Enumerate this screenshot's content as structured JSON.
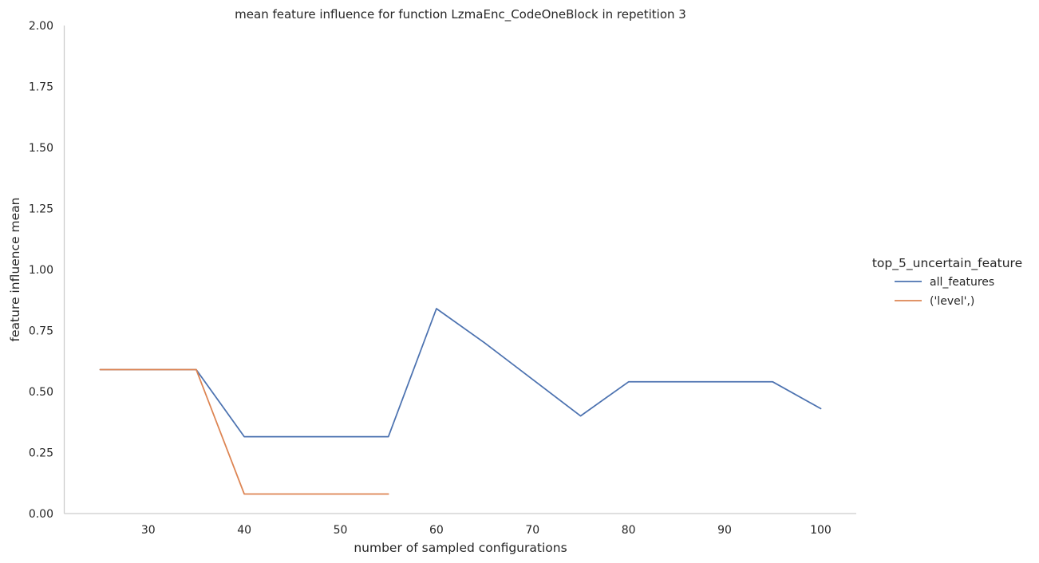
{
  "chart_data": {
    "type": "line",
    "title": "mean feature influence for function LzmaEnc_CodeOneBlock in repetition 3",
    "xlabel": "number of sampled configurations",
    "ylabel": "feature influence mean",
    "xlim": [
      21.3,
      103.7
    ],
    "ylim": [
      0,
      2
    ],
    "xticks": [
      30,
      40,
      50,
      60,
      70,
      80,
      90,
      100
    ],
    "yticks": [
      0,
      0.25,
      0.5,
      0.75,
      1.0,
      1.25,
      1.5,
      1.75,
      2.0
    ],
    "ytick_labels": [
      "0.00",
      "0.25",
      "0.50",
      "0.75",
      "1.00",
      "1.25",
      "1.50",
      "1.75",
      "2.00"
    ],
    "grid": false,
    "legend": {
      "title": "top_5_uncertain_feature",
      "placement": "right"
    },
    "series": [
      {
        "name": "all_features",
        "color": "#4c72b0",
        "x": [
          25,
          30,
          35,
          40,
          45,
          50,
          55,
          60,
          65,
          70,
          75,
          80,
          85,
          90,
          95,
          100
        ],
        "y": [
          0.59,
          0.59,
          0.59,
          0.315,
          0.315,
          0.315,
          0.315,
          0.84,
          0.7,
          0.55,
          0.4,
          0.54,
          0.54,
          0.54,
          0.54,
          0.43
        ]
      },
      {
        "name": "('level',)",
        "color": "#dd8452",
        "x": [
          25,
          30,
          35,
          40,
          45,
          50,
          55
        ],
        "y": [
          0.59,
          0.59,
          0.59,
          0.08,
          0.08,
          0.08,
          0.08
        ]
      }
    ]
  }
}
